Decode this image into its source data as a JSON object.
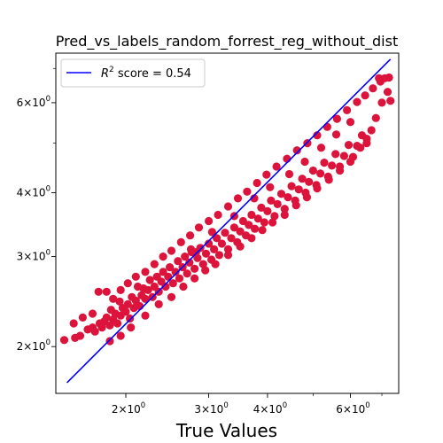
{
  "chart_data": {
    "type": "scatter",
    "title": "Pred_vs_labels_random_forrest_reg_without_dist",
    "xlabel": "True Values",
    "ylabel": "",
    "x_scale": "log",
    "y_scale": "log",
    "xlim": [
      1.42,
      7.6
    ],
    "ylim": [
      1.62,
      7.5
    ],
    "x_major_ticks": [
      {
        "value": 2,
        "base": "2",
        "mult": "×",
        "pow": "10",
        "exp": "0"
      },
      {
        "value": 3,
        "base": "3",
        "mult": "×",
        "pow": "10",
        "exp": "0"
      },
      {
        "value": 4,
        "base": "4",
        "mult": "×",
        "pow": "10",
        "exp": "0"
      },
      {
        "value": 6,
        "base": "6",
        "mult": "×",
        "pow": "10",
        "exp": "0"
      }
    ],
    "y_major_ticks": [
      {
        "value": 2,
        "base": "2",
        "mult": "×",
        "pow": "10",
        "exp": "0"
      },
      {
        "value": 3,
        "base": "3",
        "mult": "×",
        "pow": "10",
        "exp": "0"
      },
      {
        "value": 4,
        "base": "4",
        "mult": "×",
        "pow": "10",
        "exp": "0"
      },
      {
        "value": 6,
        "base": "6",
        "mult": "×",
        "pow": "10",
        "exp": "0"
      }
    ],
    "x_minor_ticks": [
      5,
      7
    ],
    "y_minor_ticks": [
      5,
      7
    ],
    "series": [
      {
        "kind": "scatter",
        "color": "#dc143c",
        "points": [
          [
            1.48,
            2.06
          ],
          [
            1.56,
            2.08
          ],
          [
            1.6,
            2.1
          ],
          [
            1.66,
            2.16
          ],
          [
            1.7,
            2.18
          ],
          [
            1.72,
            2.14
          ],
          [
            1.76,
            2.22
          ],
          [
            1.78,
            2.18
          ],
          [
            1.8,
            2.24
          ],
          [
            1.82,
            2.28
          ],
          [
            1.85,
            2.2
          ],
          [
            1.86,
            2.36
          ],
          [
            1.88,
            2.26
          ],
          [
            1.9,
            2.32
          ],
          [
            1.92,
            2.22
          ],
          [
            1.94,
            2.45
          ],
          [
            1.95,
            2.3
          ],
          [
            1.97,
            2.38
          ],
          [
            2.0,
            2.34
          ],
          [
            2.02,
            2.42
          ],
          [
            2.04,
            2.27
          ],
          [
            2.06,
            2.5
          ],
          [
            2.08,
            2.38
          ],
          [
            2.1,
            2.46
          ],
          [
            2.12,
            2.62
          ],
          [
            2.14,
            2.4
          ],
          [
            2.16,
            2.52
          ],
          [
            2.18,
            2.6
          ],
          [
            2.2,
            2.48
          ],
          [
            2.23,
            2.58
          ],
          [
            2.25,
            2.7
          ],
          [
            2.28,
            2.5
          ],
          [
            2.3,
            2.62
          ],
          [
            2.33,
            2.74
          ],
          [
            2.35,
            2.56
          ],
          [
            2.38,
            2.68
          ],
          [
            2.4,
            2.8
          ],
          [
            2.43,
            2.62
          ],
          [
            2.46,
            2.74
          ],
          [
            2.48,
            2.86
          ],
          [
            2.52,
            2.66
          ],
          [
            2.55,
            2.8
          ],
          [
            2.58,
            2.94
          ],
          [
            2.6,
            2.72
          ],
          [
            2.64,
            2.86
          ],
          [
            2.67,
            3.0
          ],
          [
            2.7,
            2.78
          ],
          [
            2.73,
            2.92
          ],
          [
            2.76,
            3.06
          ],
          [
            2.8,
            2.84
          ],
          [
            2.84,
            2.98
          ],
          [
            2.88,
            3.12
          ],
          [
            2.92,
            2.9
          ],
          [
            2.96,
            3.04
          ],
          [
            3.0,
            3.18
          ],
          [
            3.04,
            2.96
          ],
          [
            3.08,
            3.1
          ],
          [
            3.12,
            3.26
          ],
          [
            3.16,
            3.02
          ],
          [
            3.2,
            3.18
          ],
          [
            3.25,
            3.34
          ],
          [
            3.3,
            3.1
          ],
          [
            3.35,
            3.26
          ],
          [
            3.4,
            3.42
          ],
          [
            3.45,
            3.2
          ],
          [
            3.5,
            3.36
          ],
          [
            3.55,
            3.52
          ],
          [
            3.6,
            3.3
          ],
          [
            3.65,
            3.46
          ],
          [
            3.7,
            3.62
          ],
          [
            3.76,
            3.4
          ],
          [
            3.82,
            3.56
          ],
          [
            3.88,
            3.74
          ],
          [
            3.94,
            3.5
          ],
          [
            4.0,
            3.68
          ],
          [
            4.07,
            3.86
          ],
          [
            4.14,
            3.6
          ],
          [
            4.2,
            3.8
          ],
          [
            4.28,
            3.98
          ],
          [
            4.35,
            3.72
          ],
          [
            4.42,
            3.92
          ],
          [
            4.5,
            4.12
          ],
          [
            4.58,
            3.86
          ],
          [
            4.66,
            4.06
          ],
          [
            4.74,
            4.26
          ],
          [
            4.82,
            4.0
          ],
          [
            4.9,
            4.2
          ],
          [
            5.0,
            4.42
          ],
          [
            5.08,
            4.14
          ],
          [
            5.18,
            4.36
          ],
          [
            5.28,
            4.58
          ],
          [
            5.38,
            4.3
          ],
          [
            5.48,
            4.52
          ],
          [
            5.58,
            4.76
          ],
          [
            5.7,
            4.5
          ],
          [
            5.82,
            4.72
          ],
          [
            5.95,
            4.96
          ],
          [
            6.08,
            4.7
          ],
          [
            6.2,
            4.94
          ],
          [
            6.35,
            5.18
          ],
          [
            6.5,
            5.0
          ],
          [
            6.65,
            5.3
          ],
          [
            6.8,
            5.6
          ],
          [
            7.0,
            6.0
          ],
          [
            1.55,
            2.22
          ],
          [
            1.62,
            2.28
          ],
          [
            1.7,
            2.32
          ],
          [
            1.75,
            2.56
          ],
          [
            1.82,
            2.56
          ],
          [
            1.88,
            2.48
          ],
          [
            1.95,
            2.58
          ],
          [
            2.02,
            2.66
          ],
          [
            2.1,
            2.74
          ],
          [
            2.2,
            2.8
          ],
          [
            2.3,
            2.9
          ],
          [
            2.4,
            3.0
          ],
          [
            2.5,
            3.08
          ],
          [
            2.62,
            3.2
          ],
          [
            2.74,
            3.3
          ],
          [
            2.86,
            3.42
          ],
          [
            3.0,
            3.52
          ],
          [
            3.14,
            3.62
          ],
          [
            3.3,
            3.76
          ],
          [
            3.46,
            3.9
          ],
          [
            3.62,
            4.02
          ],
          [
            3.8,
            4.18
          ],
          [
            3.98,
            4.34
          ],
          [
            4.18,
            4.5
          ],
          [
            4.4,
            4.66
          ],
          [
            4.62,
            4.84
          ],
          [
            4.86,
            5.0
          ],
          [
            5.1,
            5.18
          ],
          [
            5.36,
            5.38
          ],
          [
            5.62,
            5.58
          ],
          [
            5.9,
            5.8
          ],
          [
            6.2,
            6.02
          ],
          [
            6.45,
            6.2
          ],
          [
            6.7,
            6.4
          ],
          [
            6.95,
            6.6
          ],
          [
            7.1,
            6.7
          ],
          [
            7.25,
            6.72
          ],
          [
            7.3,
            6.05
          ],
          [
            7.2,
            6.3
          ],
          [
            6.9,
            6.7
          ],
          [
            1.85,
            2.05
          ],
          [
            1.95,
            2.1
          ],
          [
            2.05,
            2.18
          ],
          [
            2.2,
            2.3
          ],
          [
            2.35,
            2.42
          ],
          [
            2.5,
            2.5
          ],
          [
            2.65,
            2.62
          ],
          [
            2.8,
            2.72
          ],
          [
            2.95,
            2.82
          ],
          [
            3.1,
            2.9
          ],
          [
            3.3,
            3.02
          ],
          [
            3.5,
            3.14
          ],
          [
            3.7,
            3.26
          ],
          [
            3.9,
            3.38
          ],
          [
            4.1,
            3.5
          ],
          [
            4.35,
            3.62
          ],
          [
            4.6,
            3.78
          ],
          [
            4.85,
            3.92
          ],
          [
            5.1,
            4.08
          ],
          [
            5.4,
            4.24
          ],
          [
            5.7,
            4.42
          ],
          [
            6.0,
            4.6
          ],
          [
            6.3,
            4.9
          ],
          [
            6.5,
            5.1
          ],
          [
            2.75,
            3.1
          ],
          [
            2.82,
            3.06
          ],
          [
            3.05,
            3.35
          ],
          [
            3.4,
            3.6
          ],
          [
            3.75,
            3.9
          ],
          [
            4.05,
            4.1
          ],
          [
            4.45,
            4.35
          ],
          [
            4.8,
            4.6
          ],
          [
            5.2,
            4.9
          ],
          [
            5.6,
            5.2
          ],
          [
            6.0,
            5.5
          ]
        ]
      },
      {
        "kind": "line",
        "name_prefix": "R",
        "name_sup": "2",
        "name_suffix": " score = 0.54",
        "color": "#0000ff",
        "points": [
          [
            1.5,
            1.7
          ],
          [
            7.3,
            7.3
          ]
        ]
      }
    ],
    "legend": "top-left",
    "grid": false
  }
}
